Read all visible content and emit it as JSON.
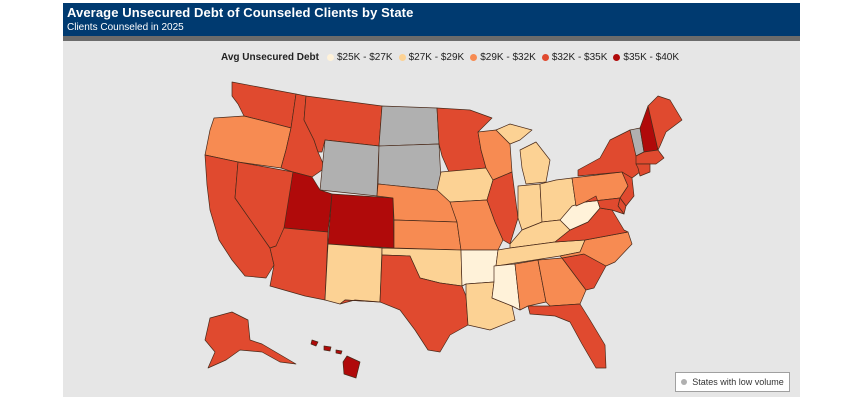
{
  "header": {
    "title": "Average Unsecured Debt of Counseled Clients by State",
    "subtitle": "Clients Counseled in 2025"
  },
  "legend": {
    "title": "Avg Unsecured Debt",
    "items": [
      {
        "label": "$25K - $27K",
        "color": "#fff2d9"
      },
      {
        "label": "$27K - $29K",
        "color": "#fcd294"
      },
      {
        "label": "$29K - $32K",
        "color": "#f78b52"
      },
      {
        "label": "$32K - $35K",
        "color": "#e04a2f"
      },
      {
        "label": "$35K - $40K",
        "color": "#b00a0a"
      }
    ]
  },
  "low_volume": {
    "label": "States with low volume",
    "color": "#b0b0b0"
  },
  "states": [
    {
      "id": "WA",
      "bin": 3
    },
    {
      "id": "OR",
      "bin": 2
    },
    {
      "id": "CA",
      "bin": 3
    },
    {
      "id": "NV",
      "bin": 3
    },
    {
      "id": "ID",
      "bin": 3
    },
    {
      "id": "MT",
      "bin": 3
    },
    {
      "id": "WY",
      "bin": -1
    },
    {
      "id": "UT",
      "bin": 4
    },
    {
      "id": "CO",
      "bin": 4
    },
    {
      "id": "AZ",
      "bin": 3
    },
    {
      "id": "NM",
      "bin": 1
    },
    {
      "id": "ND",
      "bin": -1
    },
    {
      "id": "SD",
      "bin": -1
    },
    {
      "id": "NE",
      "bin": 2
    },
    {
      "id": "KS",
      "bin": 2
    },
    {
      "id": "OK",
      "bin": 1
    },
    {
      "id": "TX",
      "bin": 3
    },
    {
      "id": "MN",
      "bin": 3
    },
    {
      "id": "IA",
      "bin": 1
    },
    {
      "id": "MO",
      "bin": 2
    },
    {
      "id": "AR",
      "bin": 0
    },
    {
      "id": "LA",
      "bin": 1
    },
    {
      "id": "WI",
      "bin": 2
    },
    {
      "id": "IL",
      "bin": 3
    },
    {
      "id": "MI",
      "bin": 1
    },
    {
      "id": "IN",
      "bin": 1
    },
    {
      "id": "OH",
      "bin": 1
    },
    {
      "id": "KY",
      "bin": 1
    },
    {
      "id": "TN",
      "bin": 1
    },
    {
      "id": "MS",
      "bin": 0
    },
    {
      "id": "AL",
      "bin": 2
    },
    {
      "id": "GA",
      "bin": 2
    },
    {
      "id": "FL",
      "bin": 3
    },
    {
      "id": "SC",
      "bin": 3
    },
    {
      "id": "NC",
      "bin": 2
    },
    {
      "id": "VA",
      "bin": 3
    },
    {
      "id": "WV",
      "bin": 0
    },
    {
      "id": "PA",
      "bin": 2
    },
    {
      "id": "NY",
      "bin": 3
    },
    {
      "id": "VT",
      "bin": -1
    },
    {
      "id": "NH",
      "bin": 4
    },
    {
      "id": "ME",
      "bin": 3
    },
    {
      "id": "MA",
      "bin": 3
    },
    {
      "id": "CT",
      "bin": 3
    },
    {
      "id": "NJ",
      "bin": 3
    },
    {
      "id": "DE",
      "bin": 3
    },
    {
      "id": "MD",
      "bin": 3
    },
    {
      "id": "AK",
      "bin": 3
    },
    {
      "id": "HI",
      "bin": 4
    }
  ]
}
